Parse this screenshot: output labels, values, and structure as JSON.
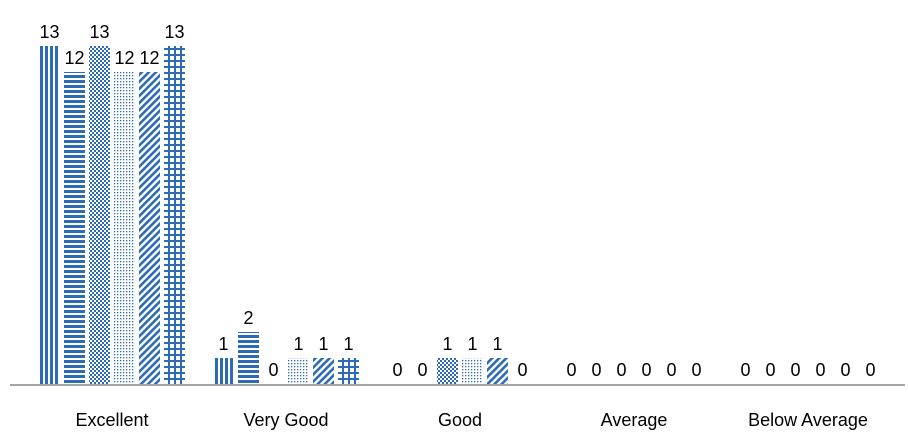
{
  "chart_data": {
    "type": "bar",
    "title": "",
    "xlabel": "",
    "ylabel": "",
    "categories": [
      "Excellent",
      "Very Good",
      "Good",
      "Average",
      "Below Average"
    ],
    "series": [
      {
        "values": [
          13,
          1,
          0,
          0,
          0
        ],
        "pattern": "vertical-lines"
      },
      {
        "values": [
          12,
          2,
          0,
          0,
          0
        ],
        "pattern": "horizontal-lines"
      },
      {
        "values": [
          13,
          0,
          1,
          0,
          0
        ],
        "pattern": "diagonal-checker"
      },
      {
        "values": [
          12,
          1,
          1,
          0,
          0
        ],
        "pattern": "dots"
      },
      {
        "values": [
          12,
          1,
          1,
          0,
          0
        ],
        "pattern": "diagonal-lines"
      },
      {
        "values": [
          13,
          1,
          0,
          0,
          0
        ],
        "pattern": "grid"
      }
    ],
    "ylim": [
      0,
      13
    ],
    "grid": false,
    "legend": "none",
    "bar_color": "#2e6bb5",
    "axis_color": "#a6a6a6"
  }
}
